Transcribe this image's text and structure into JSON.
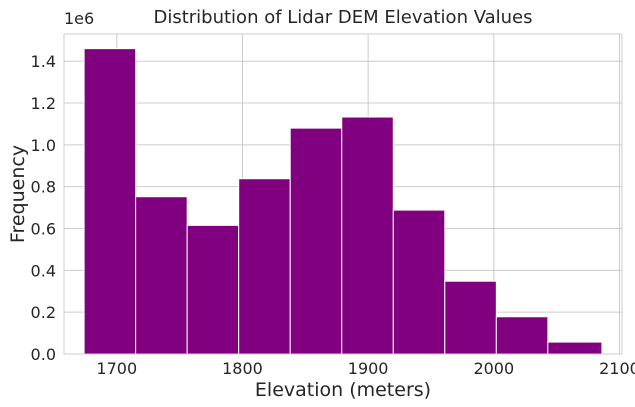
{
  "chart_data": {
    "type": "histogram",
    "title": "Distribution of Lidar DEM Elevation Values",
    "xlabel": "Elevation (meters)",
    "ylabel": "Frequency",
    "y_offset_label": "1e6",
    "bin_edges": [
      1674,
      1715,
      1756,
      1797,
      1838,
      1879,
      1920,
      1961,
      2002,
      2043,
      2086
    ],
    "values": [
      1460000,
      752000,
      615000,
      838000,
      1080000,
      1133000,
      688000,
      348000,
      178000,
      57000
    ],
    "bar_color": "#800080",
    "xlim": [
      1658,
      2102
    ],
    "ylim": [
      0,
      1530000
    ],
    "x_ticks": [
      1700,
      1800,
      1900,
      2000,
      2100
    ],
    "x_tick_labels": [
      "1700",
      "1800",
      "1900",
      "2000",
      "2100"
    ],
    "y_ticks": [
      0,
      200000,
      400000,
      600000,
      800000,
      1000000,
      1200000,
      1400000
    ],
    "y_tick_labels": [
      "0.0",
      "0.2",
      "0.4",
      "0.6",
      "0.8",
      "1.0",
      "1.2",
      "1.4"
    ],
    "grid": true,
    "grid_color": "#cccccc"
  }
}
